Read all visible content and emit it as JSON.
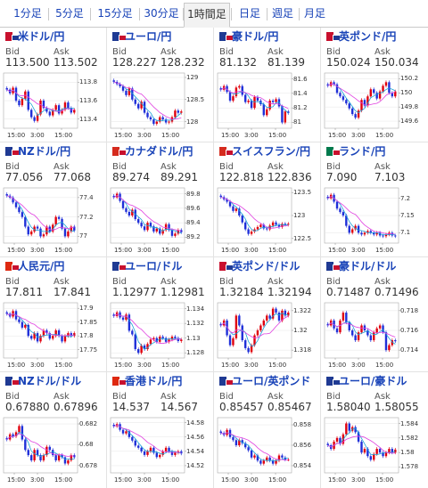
{
  "tabs": [
    {
      "label": "1分足",
      "active": false
    },
    {
      "label": "5分足",
      "active": false
    },
    {
      "label": "15分足",
      "active": false
    },
    {
      "label": "30分足",
      "active": false
    },
    {
      "label": "1時間足",
      "active": true
    },
    {
      "label": "日足",
      "active": false
    },
    {
      "label": "週足",
      "active": false
    },
    {
      "label": "月足",
      "active": false
    }
  ],
  "bid_label": "Bid",
  "ask_label": "Ask",
  "x_ticks": [
    "15:00",
    "3:00",
    "15:00"
  ],
  "colors": {
    "link": "#1a44b8",
    "up": "#e0000e",
    "down": "#1f2fd8",
    "ma_fast": "#1aa3d8",
    "ma_slow": "#e040e0"
  },
  "pairs": [
    {
      "name": "米ドル/円",
      "flag": "usd-jpy",
      "bid": "113.500",
      "ask": "113.502",
      "yticks": [
        "113.8",
        "113.6",
        "113.4"
      ],
      "ylim": [
        113.3,
        113.9
      ]
    },
    {
      "name": "ユーロ/円",
      "flag": "eur-jpy",
      "bid": "128.227",
      "ask": "128.232",
      "yticks": [
        "129",
        "128.5",
        "128"
      ],
      "ylim": [
        127.85,
        129.1
      ]
    },
    {
      "name": "豪ドル/円",
      "flag": "aud-jpy",
      "bid": "81.132",
      "ask": "81.139",
      "yticks": [
        "81.6",
        "81.4",
        "81.2",
        "81"
      ],
      "ylim": [
        80.92,
        81.68
      ]
    },
    {
      "name": "英ポンド/円",
      "flag": "gbp-jpy",
      "bid": "150.024",
      "ask": "150.034",
      "yticks": [
        "150.2",
        "150",
        "149.8",
        "149.6"
      ],
      "ylim": [
        149.5,
        150.28
      ]
    },
    {
      "name": "NZドル/円",
      "flag": "nzd-jpy",
      "bid": "77.056",
      "ask": "77.068",
      "yticks": [
        "77.4",
        "77.2",
        "77"
      ],
      "ylim": [
        76.93,
        77.5
      ]
    },
    {
      "name": "カナダドル/円",
      "flag": "cad-jpy",
      "bid": "89.274",
      "ask": "89.291",
      "yticks": [
        "89.8",
        "89.6",
        "89.4",
        "89.2"
      ],
      "ylim": [
        89.12,
        89.88
      ]
    },
    {
      "name": "スイスフラン/円",
      "flag": "chf-jpy",
      "bid": "122.818",
      "ask": "122.836",
      "yticks": [
        "123.5",
        "123",
        "122.5"
      ],
      "ylim": [
        122.4,
        123.6
      ]
    },
    {
      "name": "ランド/円",
      "flag": "zar-jpy",
      "bid": "7.090",
      "ask": "7.103",
      "yticks": [
        "7.2",
        "7.15",
        "7.1"
      ],
      "ylim": [
        7.07,
        7.23
      ]
    },
    {
      "name": "人民元/円",
      "flag": "cny-jpy",
      "bid": "17.811",
      "ask": "17.841",
      "yticks": [
        "17.9",
        "17.85",
        "17.8",
        "17.75"
      ],
      "ylim": [
        17.72,
        17.92
      ]
    },
    {
      "name": "ユーロ/ドル",
      "flag": "eur-usd",
      "bid": "1.12977",
      "ask": "1.12981",
      "yticks": [
        "1.134",
        "1.132",
        "1.13",
        "1.128"
      ],
      "ylim": [
        1.1273,
        1.1348
      ]
    },
    {
      "name": "英ポンド/ドル",
      "flag": "gbp-usd",
      "bid": "1.32184",
      "ask": "1.32194",
      "yticks": [
        "1.322",
        "1.32",
        "1.318"
      ],
      "ylim": [
        1.3172,
        1.3228
      ]
    },
    {
      "name": "豪ドル/ドル",
      "flag": "aud-usd",
      "bid": "0.71487",
      "ask": "0.71496",
      "yticks": [
        "0.718",
        "0.716",
        "0.714"
      ],
      "ylim": [
        0.7132,
        0.7188
      ]
    },
    {
      "name": "NZドル/ドル",
      "flag": "nzd-usd",
      "bid": "0.67880",
      "ask": "0.67896",
      "yticks": [
        "0.682",
        "0.68",
        "0.678"
      ],
      "ylim": [
        0.6773,
        0.6826
      ]
    },
    {
      "name": "香港ドル/円",
      "flag": "hkd-jpy",
      "bid": "14.537",
      "ask": "14.567",
      "yticks": [
        "14.58",
        "14.56",
        "14.54",
        "14.52"
      ],
      "ylim": [
        14.51,
        14.587
      ]
    },
    {
      "name": "ユーロ/英ポンド",
      "flag": "eur-gbp",
      "bid": "0.85457",
      "ask": "0.85467",
      "yticks": [
        "0.858",
        "0.856",
        "0.854"
      ],
      "ylim": [
        0.8533,
        0.8587
      ]
    },
    {
      "name": "ユーロ/豪ドル",
      "flag": "eur-aud",
      "bid": "1.58040",
      "ask": "1.58055",
      "yticks": [
        "1.584",
        "1.582",
        "1.58",
        "1.578"
      ],
      "ylim": [
        1.5772,
        1.5848
      ]
    }
  ],
  "chart_data": [
    {
      "type": "candlestick",
      "pair": "米ドル/円",
      "x_ticks": [
        "15:00",
        "3:00",
        "15:00"
      ],
      "ylim": [
        113.3,
        113.9
      ],
      "close_series": [
        113.72,
        113.68,
        113.74,
        113.6,
        113.55,
        113.62,
        113.7,
        113.5,
        113.42,
        113.38,
        113.45,
        113.6,
        113.52,
        113.48,
        113.44,
        113.5,
        113.55,
        113.46,
        113.5,
        113.58,
        113.52,
        113.47,
        113.5
      ]
    },
    {
      "type": "candlestick",
      "pair": "ユーロ/円",
      "x_ticks": [
        "15:00",
        "3:00",
        "15:00"
      ],
      "ylim": [
        127.85,
        129.1
      ],
      "close_series": [
        128.9,
        128.85,
        128.8,
        128.7,
        128.6,
        128.75,
        128.5,
        128.4,
        128.3,
        128.45,
        128.2,
        128.1,
        128.05,
        127.95,
        128.0,
        128.1,
        128.05,
        127.98,
        128.0,
        128.1,
        128.25,
        128.2,
        128.23
      ]
    },
    {
      "type": "candlestick",
      "pair": "豪ドル/円",
      "x_ticks": [
        "15:00",
        "3:00",
        "15:00"
      ],
      "ylim": [
        80.92,
        81.68
      ],
      "close_series": [
        81.45,
        81.5,
        81.42,
        81.3,
        81.36,
        81.48,
        81.5,
        81.38,
        81.28,
        81.3,
        81.2,
        81.35,
        81.3,
        81.25,
        81.1,
        81.18,
        81.3,
        81.28,
        81.32,
        81.22,
        81.0,
        81.15,
        81.13
      ]
    },
    {
      "type": "candlestick",
      "pair": "英ポンド/円",
      "x_ticks": [
        "15:00",
        "3:00",
        "15:00"
      ],
      "ylim": [
        149.5,
        150.28
      ],
      "close_series": [
        150.1,
        150.15,
        150.12,
        150.0,
        149.95,
        149.9,
        149.85,
        149.78,
        149.7,
        149.65,
        149.75,
        149.9,
        149.82,
        149.95,
        150.05,
        150.0,
        149.92,
        150.02,
        150.1,
        150.15,
        150.0,
        149.95,
        150.02
      ]
    },
    {
      "type": "candlestick",
      "pair": "NZドル/円",
      "x_ticks": [
        "15:00",
        "3:00",
        "15:00"
      ],
      "ylim": [
        76.93,
        77.5
      ],
      "close_series": [
        77.42,
        77.4,
        77.35,
        77.3,
        77.25,
        77.2,
        77.1,
        77.02,
        77.05,
        77.1,
        77.08,
        77.0,
        77.02,
        77.1,
        77.05,
        77.12,
        77.2,
        77.18,
        77.08,
        77.0,
        77.05,
        77.1,
        77.06
      ]
    },
    {
      "type": "candlestick",
      "pair": "カナダドル/円",
      "x_ticks": [
        "15:00",
        "3:00",
        "15:00"
      ],
      "ylim": [
        89.12,
        89.88
      ],
      "close_series": [
        89.75,
        89.8,
        89.7,
        89.6,
        89.55,
        89.5,
        89.58,
        89.45,
        89.4,
        89.35,
        89.3,
        89.4,
        89.35,
        89.28,
        89.32,
        89.25,
        89.3,
        89.38,
        89.3,
        89.22,
        89.25,
        89.3,
        89.27
      ]
    },
    {
      "type": "candlestick",
      "pair": "スイスフラン/円",
      "x_ticks": [
        "15:00",
        "3:00",
        "15:00"
      ],
      "ylim": [
        122.4,
        123.6
      ],
      "close_series": [
        123.4,
        123.35,
        123.3,
        123.2,
        123.1,
        123.15,
        123.0,
        122.85,
        122.7,
        122.6,
        122.65,
        122.7,
        122.75,
        122.8,
        122.72,
        122.7,
        122.78,
        122.85,
        122.8,
        122.75,
        122.82,
        122.8,
        122.82
      ]
    },
    {
      "type": "candlestick",
      "pair": "ランド/円",
      "x_ticks": [
        "15:00",
        "3:00",
        "15:00"
      ],
      "ylim": [
        7.07,
        7.23
      ],
      "close_series": [
        7.2,
        7.21,
        7.19,
        7.17,
        7.16,
        7.15,
        7.12,
        7.1,
        7.11,
        7.12,
        7.1,
        7.095,
        7.1,
        7.105,
        7.1,
        7.095,
        7.1,
        7.092,
        7.09,
        7.095,
        7.1,
        7.092,
        7.09
      ]
    },
    {
      "type": "candlestick",
      "pair": "人民元/円",
      "x_ticks": [
        "15:00",
        "3:00",
        "15:00"
      ],
      "ylim": [
        17.72,
        17.92
      ],
      "close_series": [
        17.88,
        17.87,
        17.89,
        17.86,
        17.85,
        17.83,
        17.84,
        17.8,
        17.79,
        17.81,
        17.78,
        17.8,
        17.82,
        17.81,
        17.79,
        17.8,
        17.82,
        17.8,
        17.78,
        17.8,
        17.81,
        17.8,
        17.81
      ]
    },
    {
      "type": "candlestick",
      "pair": "ユーロ/ドル",
      "x_ticks": [
        "15:00",
        "3:00",
        "15:00"
      ],
      "ylim": [
        1.1273,
        1.1348
      ],
      "close_series": [
        1.133,
        1.1335,
        1.1328,
        1.1325,
        1.1332,
        1.131,
        1.1305,
        1.1285,
        1.128,
        1.129,
        1.1285,
        1.1292,
        1.1298,
        1.13,
        1.1295,
        1.1302,
        1.13,
        1.1295,
        1.1298,
        1.1302,
        1.13,
        1.1296,
        1.1298
      ]
    },
    {
      "type": "candlestick",
      "pair": "英ポンド/ドル",
      "x_ticks": [
        "15:00",
        "3:00",
        "15:00"
      ],
      "ylim": [
        1.3172,
        1.3228
      ],
      "close_series": [
        1.3205,
        1.321,
        1.3195,
        1.3185,
        1.3192,
        1.3215,
        1.3205,
        1.319,
        1.3182,
        1.3178,
        1.3185,
        1.3195,
        1.32,
        1.3205,
        1.321,
        1.3215,
        1.3212,
        1.3222,
        1.3218,
        1.321,
        1.322,
        1.3215,
        1.3218
      ]
    },
    {
      "type": "candlestick",
      "pair": "豪ドル/ドル",
      "x_ticks": [
        "15:00",
        "3:00",
        "15:00"
      ],
      "ylim": [
        0.7132,
        0.7188
      ],
      "close_series": [
        0.7165,
        0.717,
        0.7162,
        0.7158,
        0.717,
        0.7178,
        0.7168,
        0.716,
        0.7155,
        0.715,
        0.7158,
        0.7165,
        0.716,
        0.7155,
        0.715,
        0.7158,
        0.7162,
        0.7165,
        0.7158,
        0.714,
        0.7145,
        0.715,
        0.7149
      ]
    },
    {
      "type": "candlestick",
      "pair": "NZドル/ドル",
      "x_ticks": [
        "15:00",
        "3:00",
        "15:00"
      ],
      "ylim": [
        0.6773,
        0.6826
      ],
      "close_series": [
        0.6805,
        0.681,
        0.6808,
        0.6812,
        0.6818,
        0.6805,
        0.6795,
        0.679,
        0.6785,
        0.6795,
        0.679,
        0.6785,
        0.679,
        0.6798,
        0.6795,
        0.679,
        0.6785,
        0.679,
        0.6788,
        0.6782,
        0.6785,
        0.679,
        0.6788
      ]
    },
    {
      "type": "candlestick",
      "pair": "香港ドル/円",
      "x_ticks": [
        "15:00",
        "3:00",
        "15:00"
      ],
      "ylim": [
        14.51,
        14.587
      ],
      "close_series": [
        14.575,
        14.578,
        14.57,
        14.565,
        14.568,
        14.56,
        14.555,
        14.548,
        14.545,
        14.54,
        14.535,
        14.54,
        14.545,
        14.538,
        14.532,
        14.535,
        14.54,
        14.545,
        14.54,
        14.535,
        14.538,
        14.54,
        14.537
      ]
    },
    {
      "type": "candlestick",
      "pair": "ユーロ/英ポンド",
      "x_ticks": [
        "15:00",
        "3:00",
        "15:00"
      ],
      "ylim": [
        0.8533,
        0.8587
      ],
      "close_series": [
        0.8572,
        0.857,
        0.8575,
        0.8568,
        0.8565,
        0.856,
        0.8565,
        0.8562,
        0.8558,
        0.8555,
        0.8548,
        0.855,
        0.8545,
        0.8542,
        0.8545,
        0.8548,
        0.8545,
        0.8542,
        0.8545,
        0.855,
        0.8548,
        0.8546,
        0.8546
      ]
    },
    {
      "type": "candlestick",
      "pair": "ユーロ/豪ドル",
      "x_ticks": [
        "15:00",
        "3:00",
        "15:00"
      ],
      "ylim": [
        1.5772,
        1.5848
      ],
      "close_series": [
        1.581,
        1.5805,
        1.5815,
        1.582,
        1.5812,
        1.5825,
        1.584,
        1.583,
        1.5835,
        1.5828,
        1.5815,
        1.58,
        1.5805,
        1.5795,
        1.579,
        1.5798,
        1.5805,
        1.58,
        1.5795,
        1.58,
        1.5805,
        1.58,
        1.5804
      ]
    }
  ]
}
